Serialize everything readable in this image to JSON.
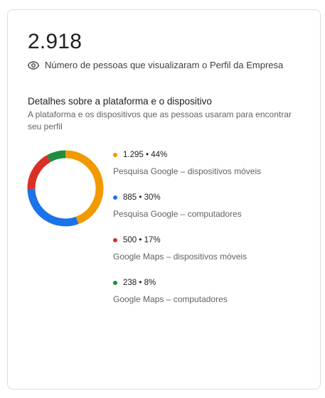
{
  "total": "2.918",
  "metric_label": "Número de pessoas que visualizaram o Perfil da Empresa",
  "section": {
    "title": "Detalhes sobre a plataforma e o dispositivo",
    "subtitle": "A plataforma e os dispositivos que as pessoas usaram para encontrar seu perfil"
  },
  "icons": {
    "metric": "eye-icon"
  },
  "chart_data": {
    "type": "pie",
    "donut": true,
    "categories": [
      "Pesquisa Google – dispositivos móveis",
      "Pesquisa Google – computadores",
      "Google Maps – dispositivos móveis",
      "Google Maps – computadores"
    ],
    "values": [
      1295,
      885,
      500,
      238
    ],
    "percents": [
      44,
      30,
      17,
      8
    ],
    "colors": [
      "#f29900",
      "#1a73e8",
      "#d93025",
      "#1e8e3e"
    ]
  },
  "legend": [
    {
      "value": "1.295 • 44%",
      "label": "Pesquisa Google – dispositivos móveis"
    },
    {
      "value": "885 • 30%",
      "label": "Pesquisa Google – computadores"
    },
    {
      "value": "500 • 17%",
      "label": "Google Maps – dispositivos móveis"
    },
    {
      "value": "238 • 8%",
      "label": "Google Maps – computadores"
    }
  ]
}
